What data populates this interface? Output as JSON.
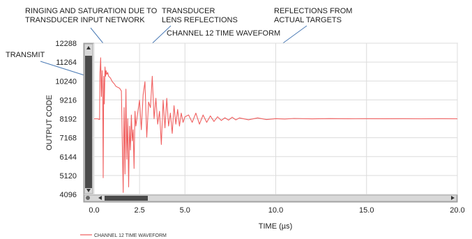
{
  "chart_data": {
    "type": "line",
    "title": "CHANNEL 12 TIME WAVEFORM",
    "xlabel": "TIME (µs)",
    "ylabel": "OUTPUT CODE",
    "xlim": [
      0,
      20
    ],
    "ylim": [
      4096,
      12288
    ],
    "x_ticks": [
      "0.0",
      "2.5",
      "5.0",
      "10.0",
      "15.0",
      "20.0"
    ],
    "x_tick_values": [
      0,
      2.5,
      5,
      10,
      15,
      20
    ],
    "y_ticks": [
      "12288",
      "11264",
      "10240",
      "9216",
      "8192",
      "7168",
      "6144",
      "5120",
      "4096"
    ],
    "y_tick_values": [
      12288,
      11264,
      10240,
      9216,
      8192,
      7168,
      6144,
      5120,
      4096
    ],
    "grid": true,
    "legend_position": "bottom-left",
    "series": [
      {
        "name": "CHANNEL 12 TIME WAVEFORM",
        "color": "#f06060",
        "x": [
          0.0,
          0.2,
          0.3,
          0.32,
          0.36,
          0.4,
          0.44,
          0.48,
          0.5,
          0.53,
          0.56,
          0.6,
          0.63,
          0.66,
          0.7,
          0.75,
          0.8,
          0.9,
          1.0,
          1.1,
          1.2,
          1.3,
          1.4,
          1.5,
          1.6,
          1.62,
          1.65,
          1.7,
          1.75,
          1.8,
          1.85,
          1.9,
          1.95,
          2.0,
          2.05,
          2.1,
          2.15,
          2.2,
          2.25,
          2.3,
          2.4,
          2.5,
          2.6,
          2.7,
          2.8,
          2.9,
          3.0,
          3.1,
          3.2,
          3.3,
          3.4,
          3.5,
          3.6,
          3.7,
          3.8,
          3.9,
          4.0,
          4.1,
          4.2,
          4.3,
          4.4,
          4.5,
          4.6,
          4.7,
          4.8,
          4.9,
          5.0,
          5.2,
          5.4,
          5.6,
          5.8,
          6.0,
          6.2,
          6.4,
          6.6,
          6.8,
          7.0,
          7.2,
          7.4,
          7.6,
          7.8,
          8.0,
          8.5,
          9.0,
          9.5,
          10.0,
          10.5,
          11.0,
          12.0,
          13.0,
          14.0,
          15.0,
          16.0,
          17.0,
          18.0,
          19.0,
          20.0
        ],
        "y": [
          8192,
          8192,
          8150,
          10600,
          11500,
          9400,
          10800,
          8600,
          5000,
          10500,
          9000,
          11000,
          10500,
          10800,
          10600,
          10700,
          10500,
          10400,
          10200,
          10100,
          9950,
          9900,
          9850,
          9700,
          4200,
          6500,
          8800,
          5200,
          9800,
          6000,
          8200,
          4500,
          7800,
          6500,
          8400,
          7000,
          7600,
          5500,
          8600,
          7800,
          8500,
          9200,
          7600,
          9500,
          10200,
          7200,
          9100,
          8800,
          10500,
          8200,
          9300,
          7900,
          8600,
          6800,
          9200,
          7700,
          9300,
          7800,
          8500,
          7400,
          8900,
          7900,
          8700,
          7800,
          8500,
          8000,
          8300,
          8400,
          8000,
          8500,
          7900,
          8400,
          8000,
          8350,
          8050,
          8300,
          8100,
          8250,
          8120,
          8280,
          8130,
          8240,
          8140,
          8240,
          8150,
          8200,
          8180,
          8210,
          8190,
          8205,
          8195,
          8200,
          8195,
          8200,
          8192,
          8200,
          8192
        ]
      }
    ],
    "annotations": [
      {
        "text": "RINGING AND SATURATION DUE TO",
        "group": "ringing"
      },
      {
        "text": "TRANSDUCER INPUT NETWORK",
        "group": "ringing"
      },
      {
        "text": "TRANSDUCER",
        "group": "lens"
      },
      {
        "text": "LENS  REFLECTIONS",
        "group": "lens"
      },
      {
        "text": "REFLECTIONS FROM",
        "group": "targets"
      },
      {
        "text": "ACTUAL TARGETS",
        "group": "targets"
      },
      {
        "text": "TRANSMIT",
        "group": "transmit"
      }
    ]
  }
}
